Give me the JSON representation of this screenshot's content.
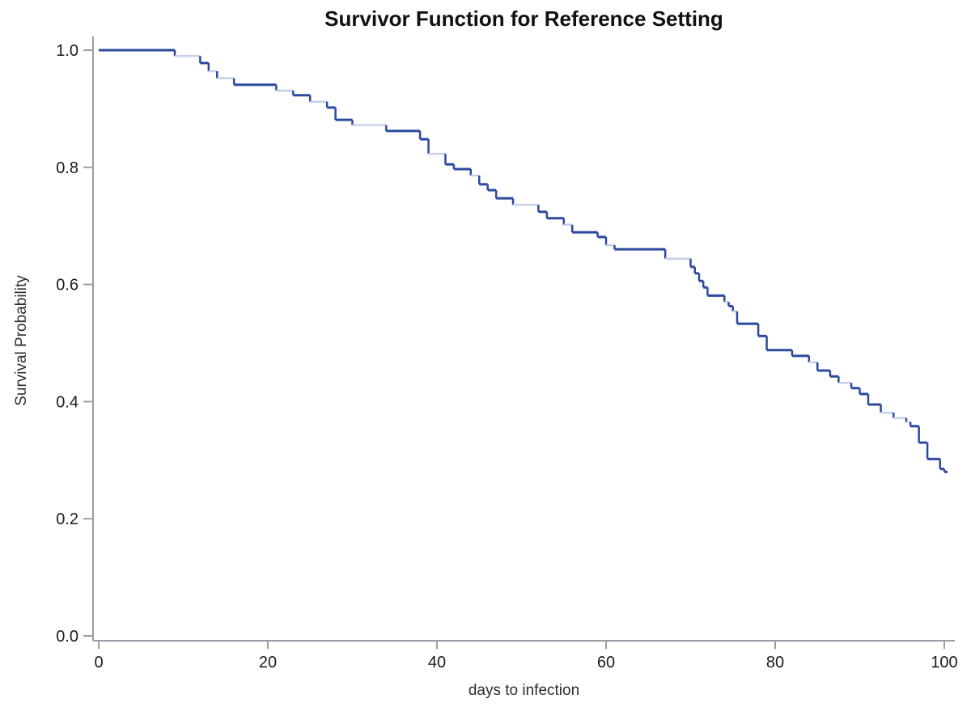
{
  "figure": {
    "title": "Survivor Function for Reference Setting",
    "xlabel": "days to infection",
    "ylabel": "Survival Probability"
  },
  "chart_data": {
    "type": "line",
    "subtype": "kaplan-meier-step-function",
    "title": "Survivor Function for Reference Setting",
    "xlabel": "days to infection",
    "ylabel": "Survival Probability",
    "xlim": [
      0,
      100
    ],
    "ylim": [
      0.0,
      1.0
    ],
    "x_ticks": [
      0,
      20,
      40,
      60,
      80,
      100
    ],
    "x_tick_labels": [
      "0",
      "20",
      "40",
      "60",
      "80",
      "100"
    ],
    "y_ticks": [
      0.0,
      0.2,
      0.4,
      0.6,
      0.8,
      1.0
    ],
    "y_tick_labels": [
      "0.0",
      "0.2",
      "0.4",
      "0.6",
      "0.8",
      "1.0"
    ],
    "grid": false,
    "legend": null,
    "series": [
      {
        "name": "Survivor function",
        "steps": [
          {
            "day": 0,
            "survival": 1.0,
            "shade": "dark"
          },
          {
            "day": 9,
            "survival": 0.99,
            "shade": "light"
          },
          {
            "day": 12,
            "survival": 0.978,
            "shade": "dark"
          },
          {
            "day": 13,
            "survival": 0.964,
            "shade": "light"
          },
          {
            "day": 14,
            "survival": 0.952,
            "shade": "light"
          },
          {
            "day": 16,
            "survival": 0.941,
            "shade": "dark"
          },
          {
            "day": 21,
            "survival": 0.931,
            "shade": "light"
          },
          {
            "day": 23,
            "survival": 0.923,
            "shade": "dark"
          },
          {
            "day": 25,
            "survival": 0.912,
            "shade": "light"
          },
          {
            "day": 27,
            "survival": 0.902,
            "shade": "dark"
          },
          {
            "day": 28,
            "survival": 0.881,
            "shade": "dark"
          },
          {
            "day": 30,
            "survival": 0.872,
            "shade": "light"
          },
          {
            "day": 34,
            "survival": 0.862,
            "shade": "dark"
          },
          {
            "day": 38,
            "survival": 0.848,
            "shade": "dark"
          },
          {
            "day": 39,
            "survival": 0.823,
            "shade": "light"
          },
          {
            "day": 41,
            "survival": 0.805,
            "shade": "dark"
          },
          {
            "day": 42,
            "survival": 0.797,
            "shade": "dark"
          },
          {
            "day": 44,
            "survival": 0.786,
            "shade": "light"
          },
          {
            "day": 45,
            "survival": 0.771,
            "shade": "dark"
          },
          {
            "day": 46,
            "survival": 0.761,
            "shade": "dark"
          },
          {
            "day": 47,
            "survival": 0.747,
            "shade": "dark"
          },
          {
            "day": 49,
            "survival": 0.736,
            "shade": "light"
          },
          {
            "day": 52,
            "survival": 0.724,
            "shade": "dark"
          },
          {
            "day": 53,
            "survival": 0.713,
            "shade": "dark"
          },
          {
            "day": 55,
            "survival": 0.702,
            "shade": "light"
          },
          {
            "day": 56,
            "survival": 0.689,
            "shade": "dark"
          },
          {
            "day": 59,
            "survival": 0.681,
            "shade": "dark"
          },
          {
            "day": 60,
            "survival": 0.667,
            "shade": "light"
          },
          {
            "day": 61,
            "survival": 0.66,
            "shade": "dark"
          },
          {
            "day": 67,
            "survival": 0.644,
            "shade": "light"
          },
          {
            "day": 70,
            "survival": 0.63,
            "shade": "dark"
          },
          {
            "day": 70.5,
            "survival": 0.619,
            "shade": "dark"
          },
          {
            "day": 71,
            "survival": 0.606,
            "shade": "dark"
          },
          {
            "day": 71.5,
            "survival": 0.595,
            "shade": "dark"
          },
          {
            "day": 72,
            "survival": 0.581,
            "shade": "dark"
          },
          {
            "day": 74,
            "survival": 0.57,
            "shade": "light"
          },
          {
            "day": 74.5,
            "survival": 0.563,
            "shade": "dark"
          },
          {
            "day": 75,
            "survival": 0.554,
            "shade": "light"
          },
          {
            "day": 75.5,
            "survival": 0.533,
            "shade": "dark"
          },
          {
            "day": 78,
            "survival": 0.512,
            "shade": "dark"
          },
          {
            "day": 79,
            "survival": 0.488,
            "shade": "dark"
          },
          {
            "day": 82,
            "survival": 0.478,
            "shade": "dark"
          },
          {
            "day": 84,
            "survival": 0.467,
            "shade": "light"
          },
          {
            "day": 85,
            "survival": 0.453,
            "shade": "dark"
          },
          {
            "day": 86.5,
            "survival": 0.443,
            "shade": "dark"
          },
          {
            "day": 87.5,
            "survival": 0.432,
            "shade": "light"
          },
          {
            "day": 89,
            "survival": 0.423,
            "shade": "dark"
          },
          {
            "day": 90,
            "survival": 0.413,
            "shade": "dark"
          },
          {
            "day": 91,
            "survival": 0.395,
            "shade": "dark"
          },
          {
            "day": 92.5,
            "survival": 0.381,
            "shade": "light"
          },
          {
            "day": 94,
            "survival": 0.372,
            "shade": "light"
          },
          {
            "day": 95.5,
            "survival": 0.365,
            "shade": "light"
          },
          {
            "day": 96,
            "survival": 0.358,
            "shade": "dark"
          },
          {
            "day": 97,
            "survival": 0.33,
            "shade": "dark"
          },
          {
            "day": 98,
            "survival": 0.302,
            "shade": "dark"
          },
          {
            "day": 99.5,
            "survival": 0.285,
            "shade": "dark"
          },
          {
            "day": 100,
            "survival": 0.28,
            "shade": "dark"
          }
        ]
      }
    ],
    "colors": {
      "curve_dark": "#2b4a9e",
      "curve_light": "#c4d0ea",
      "axis": "#97a0a6",
      "tick_text": "#1c1c1c",
      "title_text": "#111111",
      "background": "#ffffff"
    }
  }
}
